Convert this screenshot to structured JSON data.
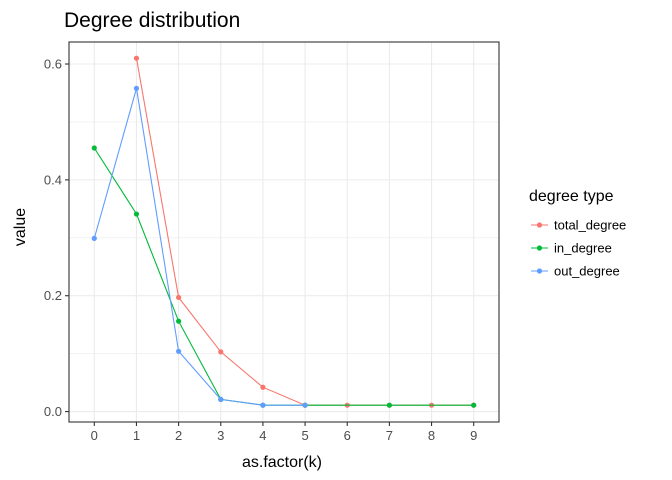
{
  "chart_data": {
    "type": "line",
    "title": "Degree distribution",
    "xlabel": "as.factor(k)",
    "ylabel": "value",
    "categories": [
      "0",
      "1",
      "2",
      "3",
      "4",
      "5",
      "6",
      "7",
      "8",
      "9"
    ],
    "yticks": [
      0.0,
      0.2,
      0.4,
      0.6
    ],
    "ytick_labels": [
      "0.0",
      "0.2",
      "0.4",
      "0.6"
    ],
    "ylim": [
      -0.018,
      0.638
    ],
    "grid": true,
    "legend": {
      "title": "degree type",
      "position": "right"
    },
    "series": [
      {
        "name": "total_degree",
        "color": "#F8766D",
        "x": [
          "1",
          "2",
          "3",
          "4",
          "5",
          "6",
          "7",
          "8",
          "9"
        ],
        "values": [
          0.61,
          0.197,
          0.103,
          0.042,
          0.011,
          0.011,
          0.011,
          0.011,
          0.011
        ]
      },
      {
        "name": "in_degree",
        "color": "#00BA38",
        "x": [
          "0",
          "1",
          "2",
          "3",
          "4",
          "5",
          "7",
          "9"
        ],
        "values": [
          0.455,
          0.341,
          0.156,
          0.021,
          0.011,
          0.011,
          0.011,
          0.011
        ]
      },
      {
        "name": "out_degree",
        "color": "#619CFF",
        "x": [
          "0",
          "1",
          "2",
          "3",
          "4",
          "5"
        ],
        "values": [
          0.299,
          0.558,
          0.104,
          0.021,
          0.011,
          0.011
        ]
      }
    ]
  }
}
